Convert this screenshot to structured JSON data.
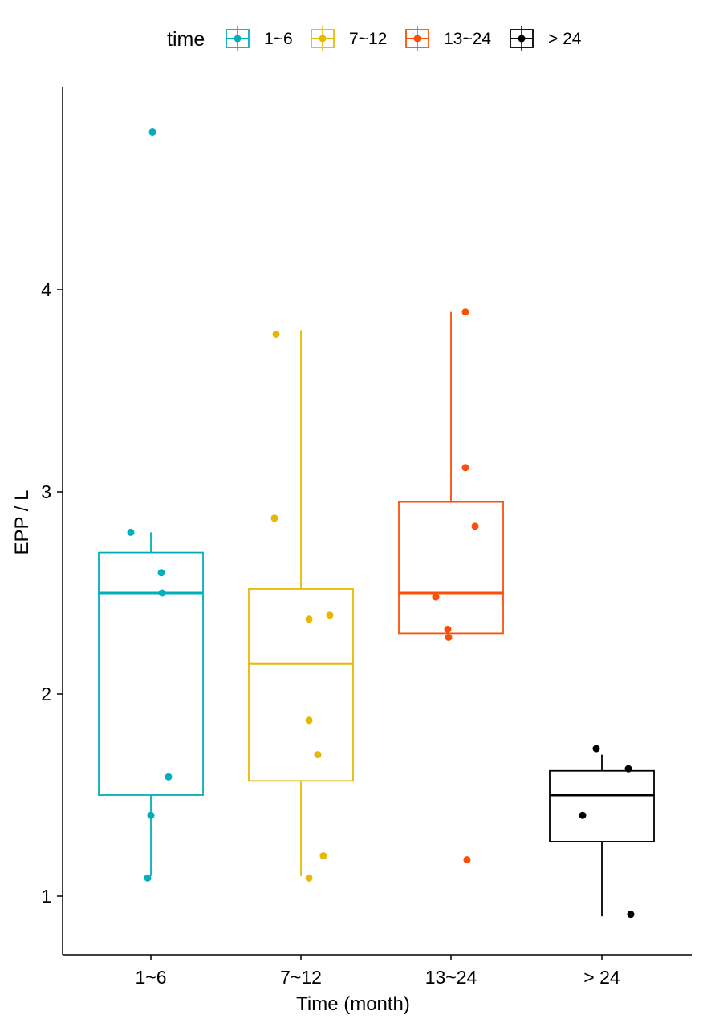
{
  "legend": {
    "title": "time",
    "items": [
      {
        "label": "1~6",
        "color": "#00AFBB"
      },
      {
        "label": "7~12",
        "color": "#E7B800"
      },
      {
        "label": "13~24",
        "color": "#FC4E07"
      },
      {
        "label": "> 24",
        "color": "#000000"
      }
    ]
  },
  "chart_data": {
    "type": "boxplot",
    "title": "",
    "xlabel": "Time (month)",
    "ylabel": "EPP / L",
    "categories": [
      "1~6",
      "7~12",
      "13~24",
      "> 24"
    ],
    "ylim": [
      0.7,
      4.95
    ],
    "yticks": [
      1,
      2,
      3,
      4
    ],
    "grid": false,
    "legend_position": "top",
    "series": [
      {
        "name": "1~6",
        "color": "#00AFBB",
        "box": {
          "whisker_low": 1.1,
          "q1": 1.5,
          "median": 2.5,
          "q3": 2.7,
          "whisker_high": 2.8
        },
        "points": [
          4.78,
          2.8,
          2.6,
          2.5,
          1.59,
          1.4,
          1.09
        ]
      },
      {
        "name": "7~12",
        "color": "#E7B800",
        "box": {
          "whisker_low": 1.1,
          "q1": 1.57,
          "median": 2.15,
          "q3": 2.52,
          "whisker_high": 3.8
        },
        "points": [
          3.78,
          2.87,
          2.39,
          2.37,
          1.87,
          1.7,
          1.2,
          1.09
        ]
      },
      {
        "name": "13~24",
        "color": "#FC4E07",
        "box": {
          "whisker_low": 2.3,
          "q1": 2.3,
          "median": 2.5,
          "q3": 2.95,
          "whisker_high": 3.89
        },
        "points": [
          3.89,
          3.12,
          2.83,
          2.48,
          2.32,
          2.28,
          1.18
        ]
      },
      {
        "name": "> 24",
        "color": "#000000",
        "box": {
          "whisker_low": 0.9,
          "q1": 1.27,
          "median": 1.5,
          "q3": 1.62,
          "whisker_high": 1.7
        },
        "points": [
          1.73,
          1.63,
          1.4,
          0.91
        ]
      }
    ]
  }
}
